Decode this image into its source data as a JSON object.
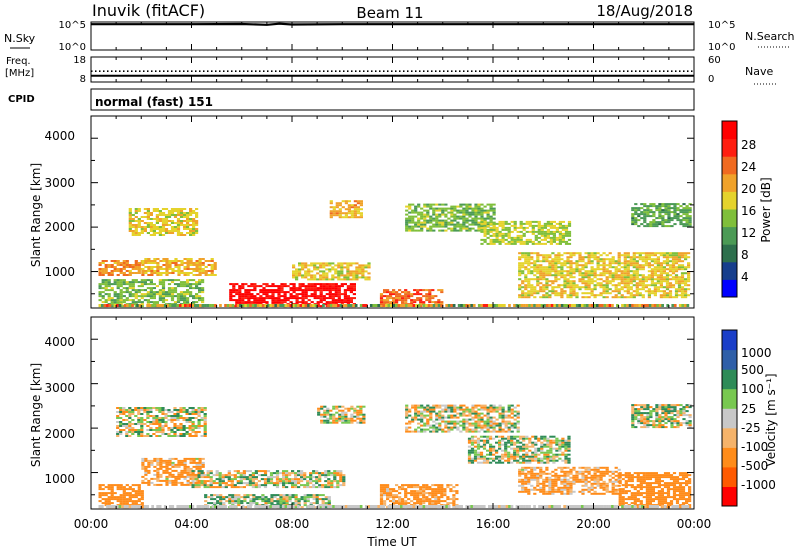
{
  "header": {
    "station": "Inuvik (fitACF)",
    "beam": "Beam 11",
    "date": "18/Aug/2018"
  },
  "nsky_panel": {
    "left_label": "N.Sky",
    "left_ticks": [
      "10^5",
      "10^0"
    ],
    "right_label": "N.Search",
    "right_ticks": [
      "10^5",
      "10^0"
    ]
  },
  "freq_panel": {
    "left_label_top": "Freq.",
    "left_label_unit": "[MHz]",
    "left_ticks": [
      "18",
      "8"
    ],
    "right_label": "Nave",
    "right_ticks": [
      "60",
      "0"
    ]
  },
  "cpid_panel": {
    "label": "CPID",
    "text": "normal (fast) 151"
  },
  "x_axis": {
    "title": "Time UT",
    "ticks": [
      "00:00",
      "04:00",
      "08:00",
      "12:00",
      "16:00",
      "20:00",
      "00:00"
    ]
  },
  "power_panel": {
    "ylabel": "Slant Range [km]",
    "yticks": [
      "4000",
      "3000",
      "2000",
      "1000"
    ],
    "colorbar_label": "Power [dB]",
    "colorbar_ticks": [
      "28",
      "24",
      "20",
      "16",
      "12",
      "8",
      "4"
    ]
  },
  "velocity_panel": {
    "ylabel": "Slant Range [km]",
    "yticks": [
      "4000",
      "3000",
      "2000",
      "1000"
    ],
    "colorbar_label": "Velocity [m s⁻¹]",
    "colorbar_ticks": [
      "1000",
      "500",
      "100",
      "25",
      "-25",
      "-100",
      "-500",
      "-1000"
    ]
  },
  "colors": {
    "power_scale": [
      "#0000ff",
      "#173e8c",
      "#2d6f4c",
      "#4b9a55",
      "#7fbf3a",
      "#e5d32c",
      "#f0a22a",
      "#f06a20",
      "#ff1e10",
      "#ff0000"
    ],
    "velocity_scale": [
      "#ff0000",
      "#ff5a00",
      "#ff8c1a",
      "#f5b36a",
      "#c8c8c8",
      "#78c850",
      "#2e8b57",
      "#2f5fa8",
      "#1a3ec8"
    ]
  },
  "chart_data": [
    {
      "type": "line",
      "title": "N.Sky / N.Search",
      "x_range_hours": [
        0,
        24
      ],
      "series": [
        {
          "name": "N.Sky",
          "x": [
            0,
            2,
            4,
            6,
            7,
            7.5,
            8,
            10,
            12,
            14,
            16,
            18,
            20,
            22,
            24
          ],
          "y_log10": [
            4.6,
            4.6,
            4.6,
            4.65,
            4.5,
            4.7,
            4.55,
            4.6,
            4.6,
            4.6,
            4.6,
            4.6,
            4.6,
            4.6,
            4.6
          ]
        }
      ]
    },
    {
      "type": "line",
      "title": "Freq. / Nave",
      "x_range_hours": [
        0,
        24
      ],
      "series": [
        {
          "name": "Freq. [MHz]",
          "x": [
            0,
            24
          ],
          "y": [
            10.5,
            10.5
          ]
        },
        {
          "name": "Nave",
          "x": [
            0,
            24
          ],
          "y": [
            26,
            26
          ]
        }
      ]
    },
    {
      "type": "heatmap",
      "title": "Power [dB]",
      "xlabel": "Time UT",
      "ylabel": "Slant Range [km]",
      "xlim_hours": [
        0,
        24
      ],
      "ylim_km": [
        180,
        4500
      ],
      "clim": [
        0,
        32
      ],
      "regions": [
        {
          "t": [
            0.3,
            4.5
          ],
          "r": [
            200,
            800
          ],
          "value": 14
        },
        {
          "t": [
            0.3,
            2.0
          ],
          "r": [
            900,
            1250
          ],
          "value": 22
        },
        {
          "t": [
            1.5,
            4.2
          ],
          "r": [
            1800,
            2400
          ],
          "value": 18
        },
        {
          "t": [
            2.0,
            5.0
          ],
          "r": [
            900,
            1300
          ],
          "value": 20
        },
        {
          "t": [
            5.5,
            10.5
          ],
          "r": [
            200,
            700
          ],
          "value": 30
        },
        {
          "t": [
            8.0,
            11.0
          ],
          "r": [
            800,
            1200
          ],
          "value": 18
        },
        {
          "t": [
            9.5,
            10.8
          ],
          "r": [
            2200,
            2600
          ],
          "value": 20
        },
        {
          "t": [
            11.5,
            14.0
          ],
          "r": [
            200,
            600
          ],
          "value": 24
        },
        {
          "t": [
            12.5,
            16.0
          ],
          "r": [
            1900,
            2500
          ],
          "value": 14
        },
        {
          "t": [
            15.5,
            19.0
          ],
          "r": [
            1600,
            2100
          ],
          "value": 16
        },
        {
          "t": [
            17.0,
            23.8
          ],
          "r": [
            400,
            1400
          ],
          "value": 18
        },
        {
          "t": [
            21.5,
            23.8
          ],
          "r": [
            2000,
            2500
          ],
          "value": 12
        }
      ]
    },
    {
      "type": "heatmap",
      "title": "Velocity [m s⁻¹]",
      "xlabel": "Time UT",
      "ylabel": "Slant Range [km]",
      "xlim_hours": [
        0,
        24
      ],
      "ylim_km": [
        180,
        4500
      ],
      "clim": [
        -1000,
        1000
      ],
      "regions": [
        {
          "t": [
            0.3,
            2.0
          ],
          "r": [
            200,
            700
          ],
          "value": -300
        },
        {
          "t": [
            1.0,
            4.5
          ],
          "r": [
            1800,
            2450
          ],
          "value": 0
        },
        {
          "t": [
            2.0,
            4.5
          ],
          "r": [
            700,
            1300
          ],
          "value": -150
        },
        {
          "t": [
            4.0,
            10.0
          ],
          "r": [
            650,
            1050
          ],
          "value": 0
        },
        {
          "t": [
            4.5,
            9.5
          ],
          "r": [
            200,
            500
          ],
          "value": 60
        },
        {
          "t": [
            9.0,
            10.8
          ],
          "r": [
            2100,
            2500
          ],
          "value": 0
        },
        {
          "t": [
            11.5,
            14.5
          ],
          "r": [
            200,
            700
          ],
          "value": -200
        },
        {
          "t": [
            12.5,
            17.0
          ],
          "r": [
            1900,
            2500
          ],
          "value": 0
        },
        {
          "t": [
            15.0,
            19.0
          ],
          "r": [
            1200,
            1800
          ],
          "value": 40
        },
        {
          "t": [
            17.0,
            21.0
          ],
          "r": [
            500,
            1100
          ],
          "value": -150
        },
        {
          "t": [
            21.0,
            23.8
          ],
          "r": [
            200,
            1000
          ],
          "value": -300
        },
        {
          "t": [
            21.5,
            23.8
          ],
          "r": [
            2000,
            2500
          ],
          "value": 30
        }
      ]
    }
  ]
}
